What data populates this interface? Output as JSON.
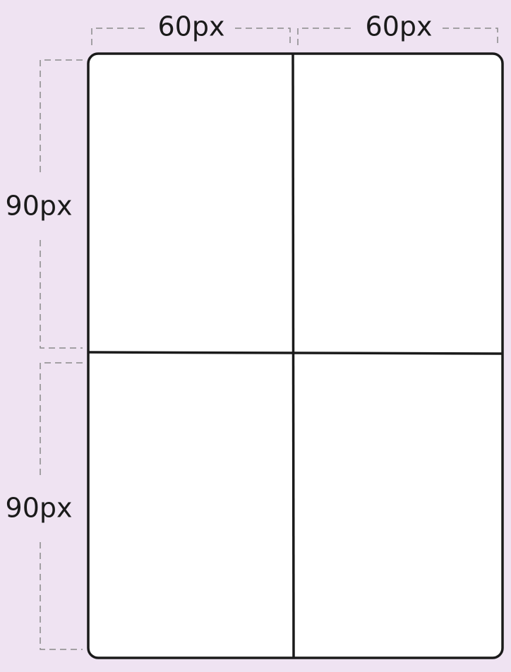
{
  "columns": [
    {
      "label": "60px"
    },
    {
      "label": "60px"
    }
  ],
  "rows": [
    {
      "label": "90px"
    },
    {
      "label": "90px"
    }
  ]
}
